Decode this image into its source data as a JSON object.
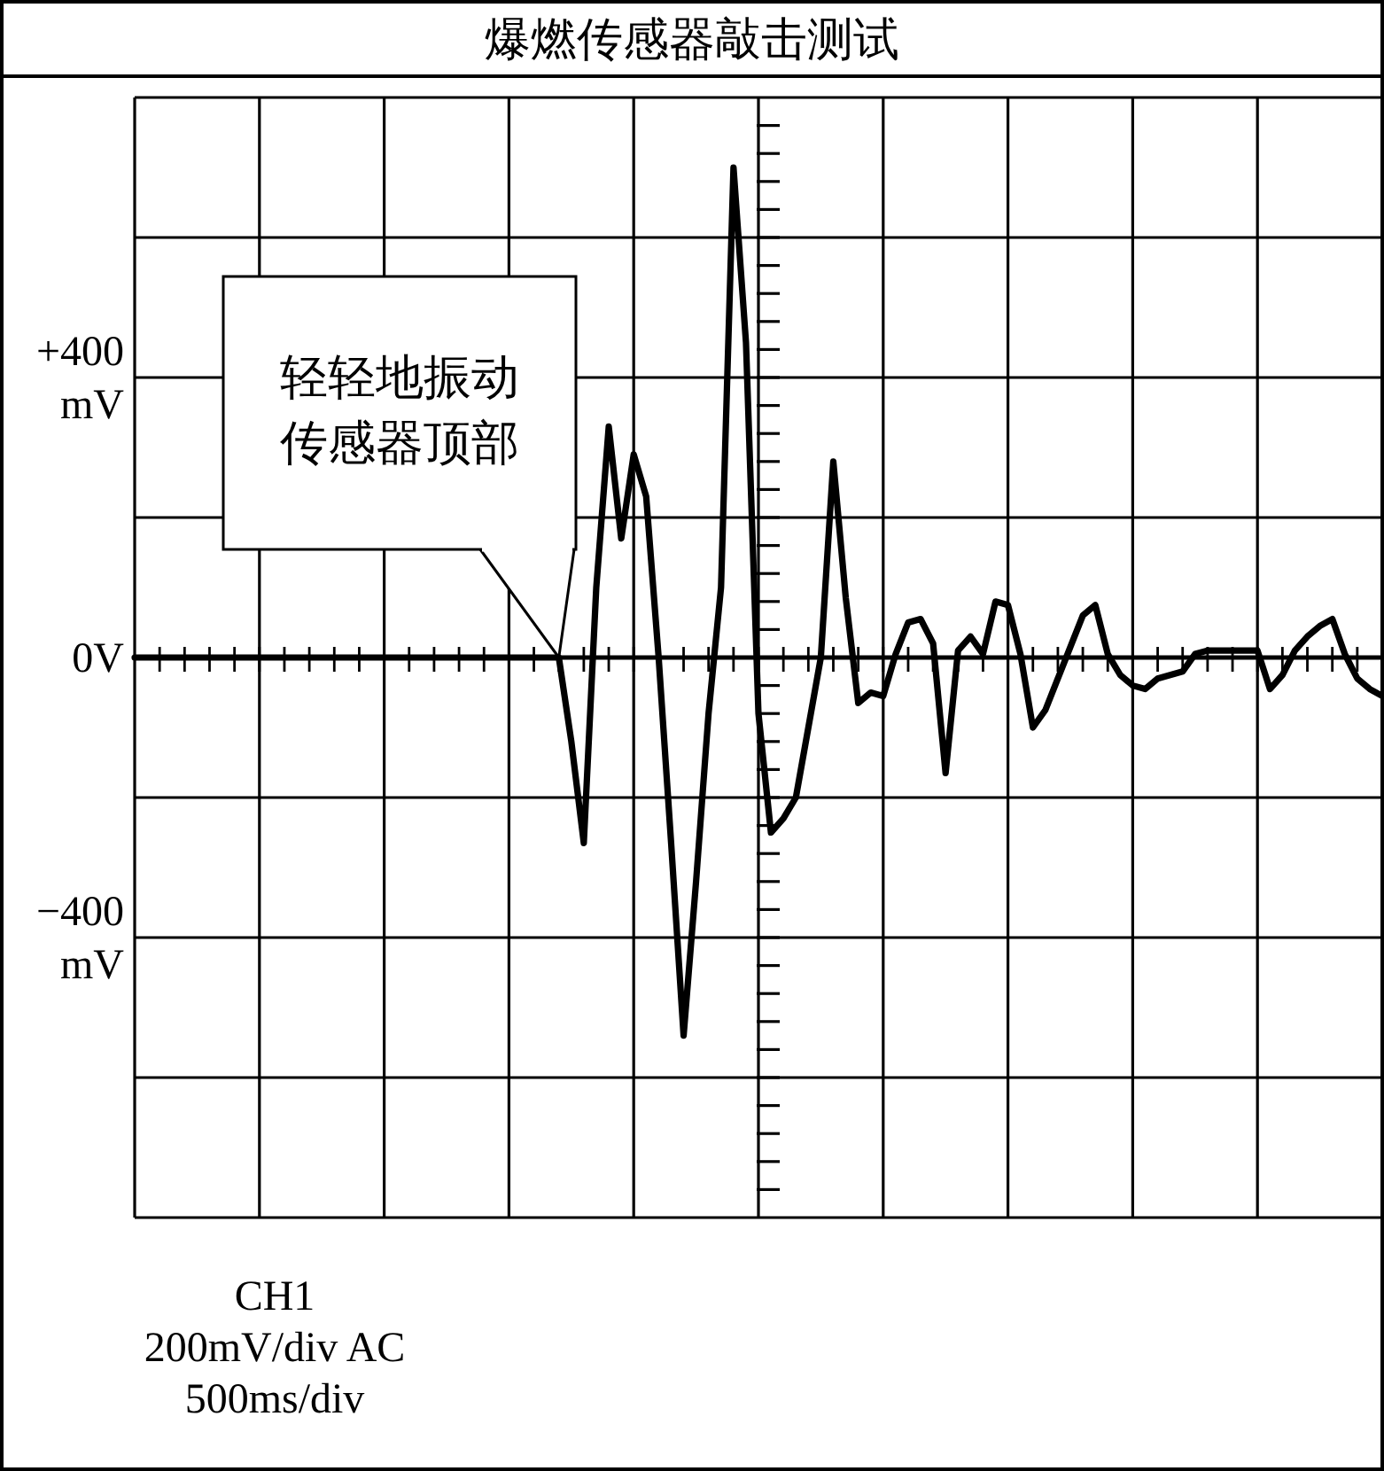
{
  "chart_data": {
    "type": "line",
    "title": "爆燃传感器敲击测试",
    "categories": [
      null,
      null,
      null,
      null,
      null,
      null,
      null,
      null,
      null,
      null,
      null,
      null,
      null,
      null,
      null,
      null,
      null,
      null,
      null,
      null,
      null,
      null,
      null,
      null,
      null,
      null,
      null,
      null,
      null,
      null,
      null,
      null,
      null,
      null,
      null,
      null,
      null,
      null,
      null,
      null,
      null,
      null,
      null,
      null,
      null,
      null,
      null,
      null,
      null,
      null,
      null,
      null,
      null,
      null,
      null,
      null,
      null,
      null,
      null,
      null,
      null,
      null,
      null,
      null,
      null,
      null,
      null,
      null,
      null,
      null,
      null,
      null,
      null,
      null,
      null,
      null,
      null,
      null,
      null,
      null,
      null,
      null,
      null,
      null,
      null,
      null,
      null,
      null,
      null,
      null,
      null,
      null,
      null,
      null,
      null,
      null,
      null,
      null,
      null,
      null,
      null
    ],
    "series": [
      {
        "color": "#000000",
        "values": [
          0,
          0,
          0,
          0,
          0,
          0,
          0,
          0,
          0,
          0,
          0,
          0,
          0,
          0,
          0,
          0,
          0,
          0,
          0,
          0,
          0,
          0,
          0,
          0,
          0,
          0,
          0,
          0,
          0,
          0,
          0,
          0,
          0,
          0,
          0,
          -120,
          -265,
          100,
          330,
          170,
          290,
          230,
          0,
          -265,
          -540,
          -320,
          -80,
          100,
          700,
          450,
          -80,
          -250,
          -230,
          -200,
          -100,
          0,
          280,
          85,
          -65,
          -50,
          -55,
          5,
          50,
          55,
          20,
          -165,
          10,
          30,
          5,
          80,
          75,
          5,
          -100,
          -75,
          -30,
          15,
          60,
          75,
          5,
          -25,
          -40,
          -45,
          -30,
          -25,
          -20,
          5,
          10,
          10,
          10,
          10,
          10,
          -45,
          -25,
          10,
          30,
          45,
          55,
          5,
          -30,
          -45,
          -55
        ]
      }
    ],
    "ylim": [
      -800,
      800
    ],
    "yticks": [
      {
        "value": -800,
        "label": null
      },
      {
        "value": -600,
        "label": null
      },
      {
        "value": -400,
        "label": "−400 mV"
      },
      {
        "value": -200,
        "label": null
      },
      {
        "value": 0,
        "label": "0V"
      },
      {
        "value": 200,
        "label": null
      },
      {
        "value": 400,
        "label": "+400 mV"
      },
      {
        "value": 600,
        "label": null
      },
      {
        "value": 800,
        "label": null
      }
    ],
    "grid": true,
    "annotations": [
      "轻轻地振动传感器顶部",
      "CH1",
      "200mV/div AC",
      "500ms/div"
    ]
  }
}
